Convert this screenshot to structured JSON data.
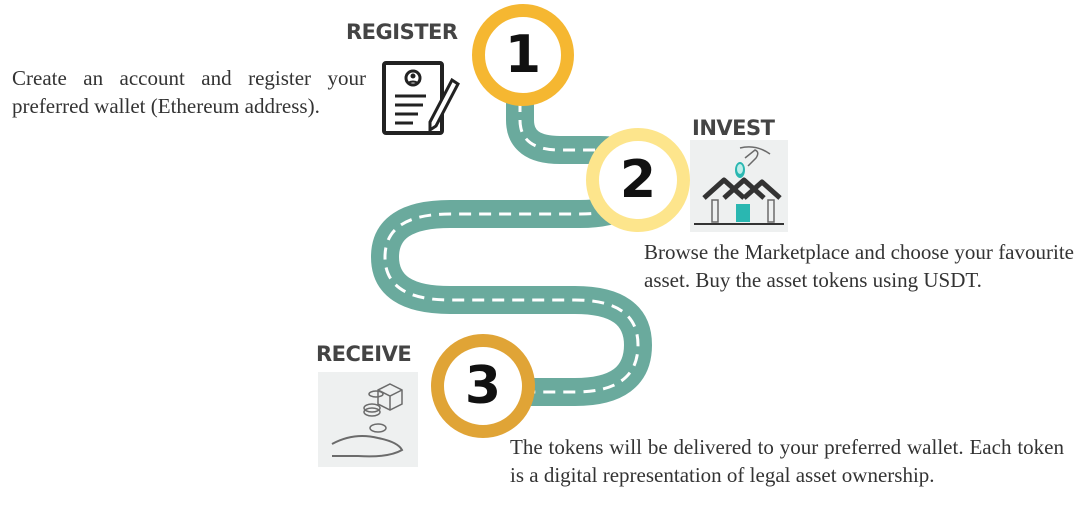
{
  "steps": [
    {
      "number": "1",
      "title": "REGISTER",
      "description": "Create an account and register your preferred wallet (Ethereum address).",
      "color": "#f5b731",
      "icon": "registration-form-icon"
    },
    {
      "number": "2",
      "title": "INVEST",
      "description": "Browse the Marketplace and choose your favourite asset. Buy the asset tokens using USDT.",
      "color": "#fde58c",
      "icon": "house-investment-icon"
    },
    {
      "number": "3",
      "title": "RECEIVE",
      "description": "The tokens will be delivered to your preferred wallet. Each token is a digital representation of legal asset ownership.",
      "color": "#e0a436",
      "icon": "receive-tokens-icon"
    }
  ],
  "road_color": "#6aaa9d"
}
